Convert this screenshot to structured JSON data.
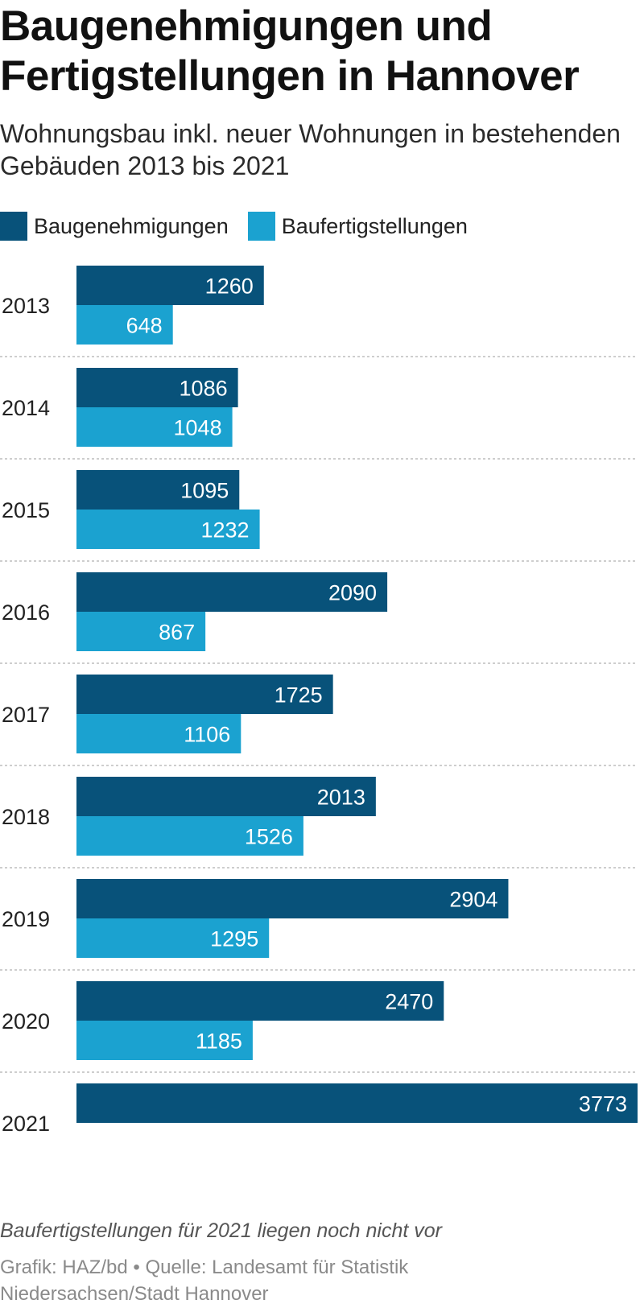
{
  "title": "Baugenehmigungen und Fertigstellungen in Hannover",
  "subtitle": "Wohnungsbau inkl. neuer Wohnungen in bestehenden Gebäuden 2013 bis 2021",
  "legend": [
    {
      "label": "Baugenehmigungen",
      "color": "#08527a"
    },
    {
      "label": "Baufertigstellungen",
      "color": "#1ba2d0"
    }
  ],
  "chart_data": {
    "type": "bar",
    "orientation": "horizontal",
    "categories": [
      "2013",
      "2014",
      "2015",
      "2016",
      "2017",
      "2018",
      "2019",
      "2020",
      "2021"
    ],
    "series": [
      {
        "name": "Baugenehmigungen",
        "color": "#08527a",
        "values": [
          1260,
          1086,
          1095,
          2090,
          1725,
          2013,
          2904,
          2470,
          3773
        ]
      },
      {
        "name": "Baufertigstellungen",
        "color": "#1ba2d0",
        "values": [
          648,
          1048,
          1232,
          867,
          1106,
          1526,
          1295,
          1185,
          null
        ]
      }
    ],
    "xlim": [
      0,
      3773
    ],
    "data_labels": true,
    "grid": false
  },
  "footnote": "Baufertigstellungen für 2021 liegen noch nicht vor",
  "source": "Grafik: HAZ/bd • Quelle: Landesamt für Statistik Niedersachsen/Stadt Hannover"
}
